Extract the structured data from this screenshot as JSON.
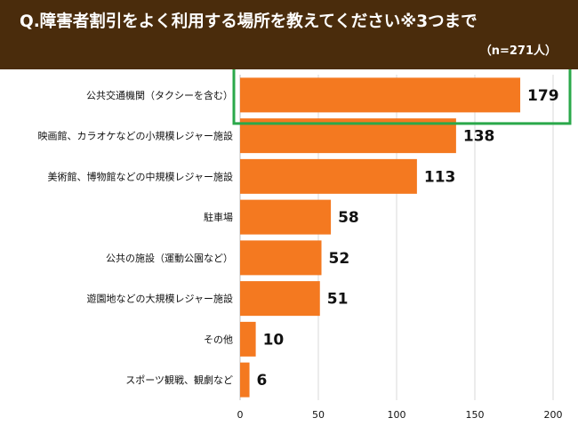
{
  "header": {
    "title": "Q.障害者割引をよく利用する場所を教えてください※3つまで",
    "sample_label": "（n=271人）",
    "background_color": "#4a2c0c"
  },
  "chart_data": {
    "type": "bar",
    "orientation": "horizontal",
    "categories": [
      "公共交通機関（タクシーを含む）",
      "映画館、カラオケなどの小規模レジャー施設",
      "美術館、博物館などの中規模レジャー施設",
      "駐車場",
      "公共の施設（運動公園など）",
      "遊園地などの大規模レジャー施設",
      "その他",
      "スポーツ観戦、観劇など"
    ],
    "values": [
      179,
      138,
      113,
      58,
      52,
      51,
      10,
      6
    ],
    "xlim": [
      0,
      200
    ],
    "xticks": [
      0,
      50,
      100,
      150,
      200
    ],
    "grid": true,
    "bar_color": "#f47920",
    "highlight_index": 0,
    "highlight_color": "#2aa84a",
    "title": "Q.障害者割引をよく利用する場所を教えてください※3つまで",
    "xlabel": "",
    "ylabel": ""
  }
}
